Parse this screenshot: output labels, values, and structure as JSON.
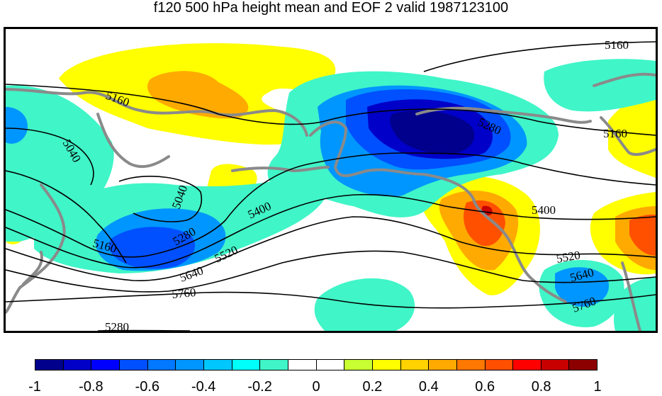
{
  "title": "f120 500 hPa height mean and EOF 2 valid 1987123100",
  "contour_labels": [
    "5160",
    "5160",
    "5160",
    "5040",
    "5040",
    "5280",
    "5400",
    "5160",
    "5280",
    "5520",
    "5400",
    "5640",
    "5760",
    "5520",
    "5640",
    "5760",
    "5280"
  ],
  "colorbar": {
    "colors": [
      "#00008c",
      "#0000c8",
      "#0000ff",
      "#0050ff",
      "#0078ff",
      "#0096ff",
      "#00c8ff",
      "#00fffa",
      "#40f5c8",
      "#ffffff",
      "#ffffff",
      "#c8ff32",
      "#ffff00",
      "#ffd200",
      "#ffaa00",
      "#ff7800",
      "#ff5000",
      "#ff0000",
      "#c80000",
      "#8c0000"
    ],
    "tick_labels": [
      "-1",
      "-0.8",
      "-0.6",
      "-0.4",
      "-0.2",
      "0",
      "0.2",
      "0.4",
      "0.6",
      "0.8",
      "1"
    ]
  }
}
